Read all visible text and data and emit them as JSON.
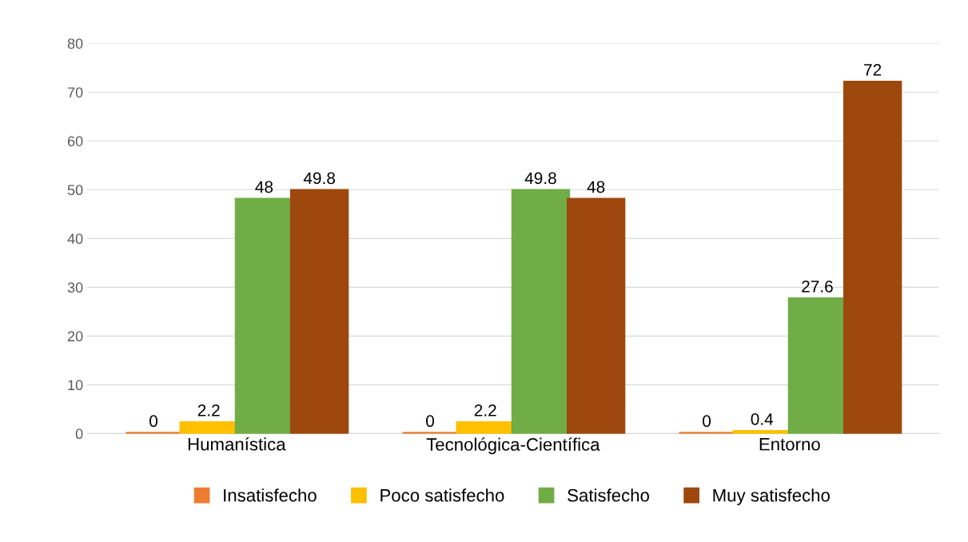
{
  "chart_data": {
    "type": "bar",
    "categories": [
      "Humanística",
      "Tecnológica-Científica",
      "Entorno"
    ],
    "series": [
      {
        "name": "Insatisfecho",
        "color": "#ed7d31",
        "values": [
          0,
          0,
          0
        ]
      },
      {
        "name": "Poco satisfecho",
        "color": "#ffc000",
        "values": [
          2.2,
          2.2,
          0.4
        ]
      },
      {
        "name": "Satisfecho",
        "color": "#70ad47",
        "values": [
          48,
          49.8,
          27.6
        ]
      },
      {
        "name": "Muy satisfecho",
        "color": "#9e480e",
        "values": [
          49.8,
          48,
          72
        ]
      }
    ],
    "ylim": [
      0,
      80
    ],
    "yticks": [
      0,
      10,
      20,
      30,
      40,
      50,
      60,
      70,
      80
    ],
    "grid": "y",
    "legend": "bottom",
    "data_labels": true
  }
}
